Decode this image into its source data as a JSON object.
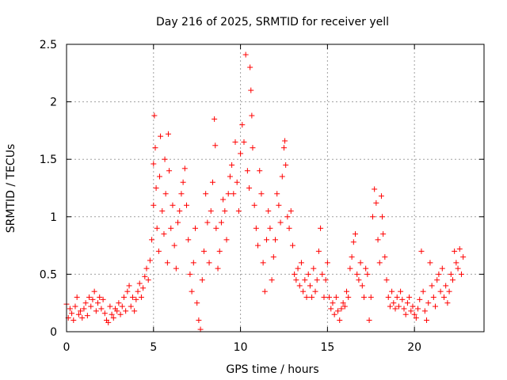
{
  "chart_data": {
    "type": "scatter",
    "title": "Day 216 of 2025, SRMTID for receiver yell",
    "xlabel": "GPS time / hours",
    "ylabel": "SRMTID / TECUs",
    "xlim": [
      0,
      24
    ],
    "ylim": [
      0,
      2.5
    ],
    "xticks": [
      0,
      5,
      10,
      15,
      20
    ],
    "xtick_labels": [
      "0",
      "5",
      "10",
      "15",
      "20"
    ],
    "yticks": [
      0,
      0.5,
      1,
      1.5,
      2,
      2.5
    ],
    "ytick_labels": [
      "0",
      "0.5",
      "1",
      "1.5",
      "2",
      "2.5"
    ],
    "grid": true,
    "marker": "+",
    "marker_color": "#ff0000",
    "series": [
      {
        "name": "SRMTID",
        "points": [
          [
            0.0,
            0.24
          ],
          [
            0.1,
            0.12
          ],
          [
            0.2,
            0.2
          ],
          [
            0.3,
            0.16
          ],
          [
            0.4,
            0.1
          ],
          [
            0.5,
            0.22
          ],
          [
            0.6,
            0.3
          ],
          [
            0.7,
            0.15
          ],
          [
            0.8,
            0.18
          ],
          [
            0.9,
            0.12
          ],
          [
            1.0,
            0.2
          ],
          [
            1.1,
            0.25
          ],
          [
            1.2,
            0.14
          ],
          [
            1.3,
            0.3
          ],
          [
            1.4,
            0.22
          ],
          [
            1.5,
            0.28
          ],
          [
            1.6,
            0.35
          ],
          [
            1.7,
            0.18
          ],
          [
            1.8,
            0.25
          ],
          [
            1.9,
            0.3
          ],
          [
            2.0,
            0.2
          ],
          [
            2.1,
            0.28
          ],
          [
            2.2,
            0.16
          ],
          [
            2.3,
            0.1
          ],
          [
            2.4,
            0.08
          ],
          [
            2.5,
            0.22
          ],
          [
            2.6,
            0.15
          ],
          [
            2.7,
            0.12
          ],
          [
            2.8,
            0.2
          ],
          [
            2.9,
            0.18
          ],
          [
            3.0,
            0.25
          ],
          [
            3.1,
            0.15
          ],
          [
            3.2,
            0.22
          ],
          [
            3.3,
            0.3
          ],
          [
            3.4,
            0.18
          ],
          [
            3.5,
            0.35
          ],
          [
            3.6,
            0.4
          ],
          [
            3.7,
            0.22
          ],
          [
            3.8,
            0.3
          ],
          [
            3.9,
            0.18
          ],
          [
            4.0,
            0.28
          ],
          [
            4.1,
            0.35
          ],
          [
            4.2,
            0.42
          ],
          [
            4.3,
            0.3
          ],
          [
            4.4,
            0.38
          ],
          [
            4.5,
            0.48
          ],
          [
            4.6,
            0.55
          ],
          [
            4.7,
            0.45
          ],
          [
            4.8,
            0.62
          ],
          [
            4.9,
            0.8
          ],
          [
            5.0,
            1.1
          ],
          [
            5.0,
            1.46
          ],
          [
            5.05,
            1.88
          ],
          [
            5.1,
            1.6
          ],
          [
            5.15,
            1.25
          ],
          [
            5.2,
            0.9
          ],
          [
            5.3,
            0.7
          ],
          [
            5.35,
            1.35
          ],
          [
            5.4,
            1.7
          ],
          [
            5.5,
            1.05
          ],
          [
            5.6,
            0.85
          ],
          [
            5.65,
            1.5
          ],
          [
            5.7,
            1.2
          ],
          [
            5.8,
            0.6
          ],
          [
            5.85,
            1.72
          ],
          [
            5.9,
            1.4
          ],
          [
            6.0,
            0.9
          ],
          [
            6.1,
            1.1
          ],
          [
            6.2,
            0.75
          ],
          [
            6.3,
            0.55
          ],
          [
            6.4,
            0.95
          ],
          [
            6.5,
            1.05
          ],
          [
            6.6,
            1.2
          ],
          [
            6.7,
            1.3
          ],
          [
            6.8,
            1.42
          ],
          [
            6.9,
            1.1
          ],
          [
            7.0,
            0.8
          ],
          [
            7.1,
            0.5
          ],
          [
            7.2,
            0.35
          ],
          [
            7.3,
            0.6
          ],
          [
            7.4,
            0.9
          ],
          [
            7.5,
            0.25
          ],
          [
            7.6,
            0.1
          ],
          [
            7.7,
            0.02
          ],
          [
            7.8,
            0.45
          ],
          [
            7.9,
            0.7
          ],
          [
            8.0,
            1.2
          ],
          [
            8.1,
            0.95
          ],
          [
            8.2,
            0.6
          ],
          [
            8.3,
            1.05
          ],
          [
            8.4,
            1.3
          ],
          [
            8.5,
            1.85
          ],
          [
            8.55,
            1.62
          ],
          [
            8.6,
            0.9
          ],
          [
            8.7,
            0.55
          ],
          [
            8.8,
            0.7
          ],
          [
            8.9,
            0.95
          ],
          [
            9.0,
            1.15
          ],
          [
            9.1,
            1.05
          ],
          [
            9.2,
            0.8
          ],
          [
            9.3,
            1.2
          ],
          [
            9.4,
            1.35
          ],
          [
            9.5,
            1.45
          ],
          [
            9.6,
            1.2
          ],
          [
            9.7,
            1.65
          ],
          [
            9.8,
            1.3
          ],
          [
            9.9,
            1.05
          ],
          [
            10.0,
            1.55
          ],
          [
            10.1,
            1.8
          ],
          [
            10.2,
            1.65
          ],
          [
            10.3,
            2.41
          ],
          [
            10.4,
            1.4
          ],
          [
            10.5,
            1.25
          ],
          [
            10.55,
            2.3
          ],
          [
            10.6,
            2.1
          ],
          [
            10.65,
            1.88
          ],
          [
            10.7,
            1.6
          ],
          [
            10.8,
            1.1
          ],
          [
            10.9,
            0.9
          ],
          [
            11.0,
            0.75
          ],
          [
            11.1,
            1.4
          ],
          [
            11.2,
            1.2
          ],
          [
            11.3,
            0.6
          ],
          [
            11.4,
            0.35
          ],
          [
            11.5,
            0.8
          ],
          [
            11.6,
            1.05
          ],
          [
            11.7,
            0.9
          ],
          [
            11.8,
            0.45
          ],
          [
            11.9,
            0.65
          ],
          [
            12.0,
            0.8
          ],
          [
            12.1,
            1.2
          ],
          [
            12.2,
            1.1
          ],
          [
            12.3,
            0.95
          ],
          [
            12.4,
            1.35
          ],
          [
            12.5,
            1.6
          ],
          [
            12.55,
            1.66
          ],
          [
            12.6,
            1.45
          ],
          [
            12.7,
            1.0
          ],
          [
            12.8,
            0.9
          ],
          [
            12.9,
            1.05
          ],
          [
            13.0,
            0.75
          ],
          [
            13.1,
            0.5
          ],
          [
            13.2,
            0.45
          ],
          [
            13.3,
            0.55
          ],
          [
            13.4,
            0.4
          ],
          [
            13.5,
            0.6
          ],
          [
            13.6,
            0.35
          ],
          [
            13.7,
            0.45
          ],
          [
            13.8,
            0.3
          ],
          [
            13.9,
            0.5
          ],
          [
            14.0,
            0.4
          ],
          [
            14.1,
            0.3
          ],
          [
            14.2,
            0.55
          ],
          [
            14.3,
            0.35
          ],
          [
            14.4,
            0.45
          ],
          [
            14.5,
            0.7
          ],
          [
            14.6,
            0.9
          ],
          [
            14.7,
            0.5
          ],
          [
            14.8,
            0.3
          ],
          [
            14.9,
            0.45
          ],
          [
            15.0,
            0.6
          ],
          [
            15.1,
            0.3
          ],
          [
            15.2,
            0.2
          ],
          [
            15.3,
            0.25
          ],
          [
            15.4,
            0.15
          ],
          [
            15.5,
            0.3
          ],
          [
            15.6,
            0.18
          ],
          [
            15.7,
            0.1
          ],
          [
            15.8,
            0.2
          ],
          [
            15.9,
            0.25
          ],
          [
            16.0,
            0.22
          ],
          [
            16.1,
            0.35
          ],
          [
            16.2,
            0.3
          ],
          [
            16.3,
            0.55
          ],
          [
            16.4,
            0.65
          ],
          [
            16.5,
            0.78
          ],
          [
            16.6,
            0.85
          ],
          [
            16.7,
            0.5
          ],
          [
            16.8,
            0.45
          ],
          [
            16.9,
            0.6
          ],
          [
            17.0,
            0.4
          ],
          [
            17.1,
            0.3
          ],
          [
            17.2,
            0.55
          ],
          [
            17.3,
            0.5
          ],
          [
            17.4,
            0.1
          ],
          [
            17.5,
            0.3
          ],
          [
            17.6,
            1.0
          ],
          [
            17.7,
            1.24
          ],
          [
            17.8,
            1.12
          ],
          [
            17.9,
            0.8
          ],
          [
            18.0,
            0.6
          ],
          [
            18.1,
            1.18
          ],
          [
            18.15,
            1.0
          ],
          [
            18.2,
            0.85
          ],
          [
            18.3,
            0.65
          ],
          [
            18.4,
            0.45
          ],
          [
            18.5,
            0.3
          ],
          [
            18.6,
            0.22
          ],
          [
            18.7,
            0.35
          ],
          [
            18.8,
            0.25
          ],
          [
            18.9,
            0.2
          ],
          [
            19.0,
            0.3
          ],
          [
            19.1,
            0.22
          ],
          [
            19.2,
            0.35
          ],
          [
            19.3,
            0.28
          ],
          [
            19.4,
            0.2
          ],
          [
            19.5,
            0.15
          ],
          [
            19.6,
            0.25
          ],
          [
            19.7,
            0.3
          ],
          [
            19.8,
            0.18
          ],
          [
            19.9,
            0.22
          ],
          [
            20.0,
            0.15
          ],
          [
            20.1,
            0.12
          ],
          [
            20.2,
            0.2
          ],
          [
            20.3,
            0.28
          ],
          [
            20.4,
            0.7
          ],
          [
            20.5,
            0.35
          ],
          [
            20.6,
            0.18
          ],
          [
            20.7,
            0.1
          ],
          [
            20.8,
            0.25
          ],
          [
            20.9,
            0.6
          ],
          [
            21.0,
            0.4
          ],
          [
            21.1,
            0.3
          ],
          [
            21.2,
            0.22
          ],
          [
            21.3,
            0.45
          ],
          [
            21.4,
            0.5
          ],
          [
            21.5,
            0.35
          ],
          [
            21.6,
            0.55
          ],
          [
            21.7,
            0.3
          ],
          [
            21.8,
            0.4
          ],
          [
            21.9,
            0.25
          ],
          [
            22.0,
            0.35
          ],
          [
            22.1,
            0.5
          ],
          [
            22.2,
            0.45
          ],
          [
            22.3,
            0.7
          ],
          [
            22.4,
            0.6
          ],
          [
            22.5,
            0.55
          ],
          [
            22.6,
            0.72
          ],
          [
            22.7,
            0.5
          ],
          [
            22.8,
            0.65
          ]
        ]
      }
    ]
  }
}
